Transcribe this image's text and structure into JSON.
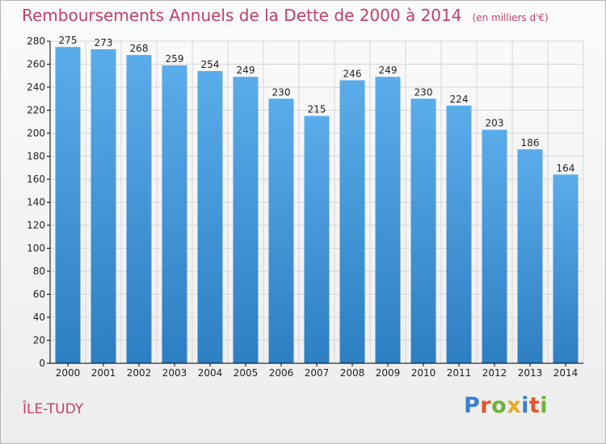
{
  "title": "Remboursements Annuels de la Dette de 2000 à 2014",
  "unit_note": "(en milliers d'€)",
  "commune": "ÎLE-TUDY",
  "logo": {
    "text": "Proxiti",
    "letters": [
      {
        "ch": "P",
        "color": "#3a7fd0"
      },
      {
        "ch": "r",
        "color": "#e2542a"
      },
      {
        "ch": "o",
        "color": "#6bb43a"
      },
      {
        "ch": "x",
        "color": "#e8a928"
      },
      {
        "ch": "i",
        "color": "#3a7fd0"
      },
      {
        "ch": "t",
        "color": "#e2542a"
      },
      {
        "ch": "i",
        "color": "#6bb43a"
      }
    ]
  },
  "colors": {
    "title": "#c0406d",
    "bar_top": "#5aacea",
    "bar_bottom": "#2d7fc3",
    "grid": "#d6d6d6",
    "axis": "#000000"
  },
  "chart_data": {
    "type": "bar",
    "categories": [
      "2000",
      "2001",
      "2002",
      "2003",
      "2004",
      "2005",
      "2006",
      "2007",
      "2008",
      "2009",
      "2010",
      "2011",
      "2012",
      "2013",
      "2014"
    ],
    "values": [
      275,
      273,
      268,
      259,
      254,
      249,
      230,
      215,
      246,
      249,
      230,
      224,
      203,
      186,
      164
    ],
    "ylim": [
      0,
      280
    ],
    "yticks": [
      0,
      20,
      40,
      60,
      80,
      100,
      120,
      140,
      160,
      180,
      200,
      220,
      240,
      260,
      280
    ],
    "grid": true,
    "data_labels": true
  }
}
